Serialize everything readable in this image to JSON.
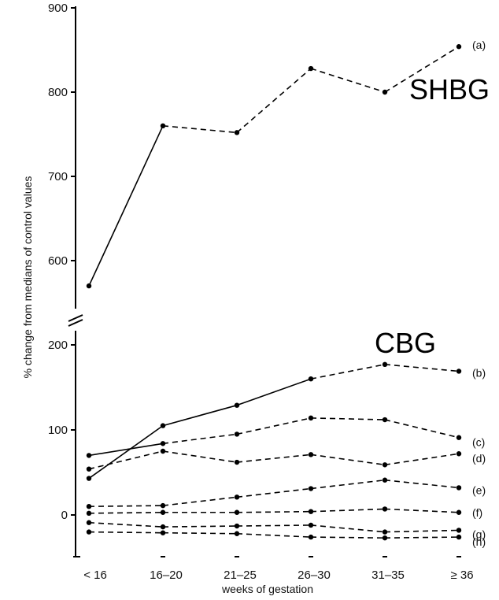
{
  "chart_data": {
    "type": "line",
    "ylabel": "% change from medians of control values",
    "xlabel": "weeks of gestation",
    "categories": [
      "< 16",
      "16–20",
      "21–25",
      "26–30",
      "31–35",
      "≥ 36"
    ],
    "panel_labels": [
      "SHBG",
      "CBG"
    ],
    "upper_axis": {
      "ylim": [
        560,
        900
      ],
      "ticks": [
        600,
        700,
        800,
        900
      ]
    },
    "lower_axis": {
      "ylim": [
        -40,
        220
      ],
      "ticks": [
        0,
        100,
        200
      ]
    },
    "axis_break": true,
    "series": [
      {
        "name": "(a)",
        "panel": "SHBG",
        "values": [
          570,
          760,
          752,
          828,
          800,
          854
        ],
        "solid_segments": [
          0
        ]
      },
      {
        "name": "(b)",
        "panel": "CBG",
        "values": [
          43,
          105,
          129,
          160,
          177,
          169
        ],
        "solid_segments": [
          0,
          1,
          2
        ]
      },
      {
        "name": "(c)",
        "values": [
          70,
          84,
          95,
          114,
          112,
          91
        ],
        "solid_segments": [
          0
        ]
      },
      {
        "name": "(d)",
        "values": [
          54,
          75,
          62,
          71,
          59,
          72
        ],
        "solid_segments": []
      },
      {
        "name": "(e)",
        "values": [
          10,
          11,
          21,
          31,
          41,
          32
        ],
        "solid_segments": []
      },
      {
        "name": "(f)",
        "values": [
          2,
          3,
          3,
          4,
          7,
          3
        ],
        "solid_segments": []
      },
      {
        "name": "(g)",
        "values": [
          -9,
          -14,
          -13,
          -12,
          -20,
          -18
        ],
        "solid_segments": []
      },
      {
        "name": "(h)",
        "values": [
          -20,
          -21,
          -22,
          -26,
          -27,
          -26
        ],
        "solid_segments": []
      }
    ]
  }
}
